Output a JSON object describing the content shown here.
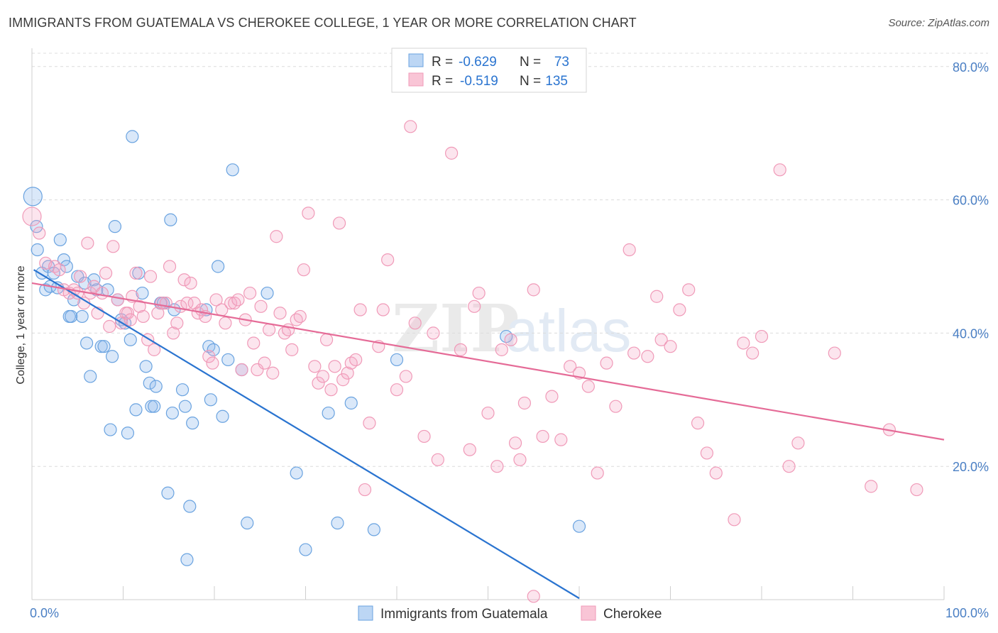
{
  "header": {
    "title": "IMMIGRANTS FROM GUATEMALA VS CHEROKEE COLLEGE, 1 YEAR OR MORE CORRELATION CHART",
    "source": "Source: ZipAtlas.com"
  },
  "legend_top": {
    "rows": [
      {
        "r_label": "R =",
        "r_value": "-0.629",
        "n_label": "N =",
        "n_value": "73"
      },
      {
        "r_label": "R =",
        "r_value": "-0.519",
        "n_label": "N =",
        "n_value": "135"
      }
    ]
  },
  "watermark": {
    "zip": "ZIP",
    "atlas": "atlas"
  },
  "chart_data": {
    "type": "scatter",
    "title": "IMMIGRANTS FROM GUATEMALA VS CHEROKEE COLLEGE, 1 YEAR OR MORE CORRELATION CHART",
    "xlabel": "",
    "ylabel": "College, 1 year or more",
    "xlim": [
      0,
      100
    ],
    "ylim": [
      0,
      82
    ],
    "x_tick_labels": [
      "0.0%",
      "100.0%"
    ],
    "y_ticks": [
      20,
      40,
      60,
      80
    ],
    "y_tick_labels": [
      "20.0%",
      "40.0%",
      "60.0%",
      "80.0%"
    ],
    "grid": true,
    "legend_position": "bottom-center",
    "colors": {
      "blue": "#6aa3e0",
      "blue_line": "#2a74d0",
      "pink": "#f09ab8",
      "pink_line": "#e56b97",
      "tick_text": "#4a7fc4"
    },
    "series": [
      {
        "name": "Immigrants from Guatemala",
        "R": -0.629,
        "N": 73,
        "trend": [
          [
            0.2,
            49.5
          ],
          [
            60,
            0.2
          ]
        ],
        "points": [
          [
            0.1,
            60.5
          ],
          [
            0.5,
            56
          ],
          [
            0.6,
            52.5
          ],
          [
            1.1,
            49
          ],
          [
            1.5,
            46.5
          ],
          [
            1.8,
            50
          ],
          [
            2.0,
            47
          ],
          [
            2.4,
            49
          ],
          [
            2.8,
            46.8
          ],
          [
            3.1,
            54
          ],
          [
            3.5,
            51
          ],
          [
            3.8,
            50
          ],
          [
            4.1,
            42.5
          ],
          [
            4.3,
            42.5
          ],
          [
            4.6,
            45
          ],
          [
            5.0,
            48.5
          ],
          [
            5.5,
            42.5
          ],
          [
            5.8,
            47.5
          ],
          [
            6.0,
            38.5
          ],
          [
            6.4,
            33.5
          ],
          [
            6.8,
            48
          ],
          [
            7.1,
            46.5
          ],
          [
            7.6,
            38
          ],
          [
            7.9,
            38
          ],
          [
            8.3,
            46.5
          ],
          [
            8.6,
            25.5
          ],
          [
            8.8,
            36.5
          ],
          [
            9.1,
            56
          ],
          [
            9.4,
            45
          ],
          [
            9.8,
            42
          ],
          [
            10.2,
            41.5
          ],
          [
            10.5,
            25
          ],
          [
            10.8,
            39
          ],
          [
            11.0,
            69.5
          ],
          [
            11.4,
            28.5
          ],
          [
            11.7,
            49
          ],
          [
            12.1,
            46
          ],
          [
            12.5,
            35
          ],
          [
            12.9,
            32.5
          ],
          [
            13.1,
            29
          ],
          [
            13.4,
            29
          ],
          [
            13.6,
            32
          ],
          [
            14.1,
            44.5
          ],
          [
            14.4,
            44.5
          ],
          [
            14.9,
            16
          ],
          [
            15.2,
            57
          ],
          [
            15.4,
            28
          ],
          [
            15.6,
            43.5
          ],
          [
            16.5,
            31.5
          ],
          [
            16.8,
            29
          ],
          [
            17.0,
            6
          ],
          [
            17.3,
            14
          ],
          [
            17.6,
            26.5
          ],
          [
            19.1,
            43.5
          ],
          [
            19.4,
            38
          ],
          [
            19.6,
            30
          ],
          [
            19.9,
            37.5
          ],
          [
            20.4,
            50
          ],
          [
            20.9,
            27.5
          ],
          [
            21.5,
            36
          ],
          [
            22.0,
            64.5
          ],
          [
            23.0,
            34.5
          ],
          [
            23.6,
            11.5
          ],
          [
            25.8,
            46
          ],
          [
            29.0,
            19
          ],
          [
            30.0,
            7.5
          ],
          [
            32.5,
            28
          ],
          [
            33.5,
            11.5
          ],
          [
            35.0,
            29.5
          ],
          [
            37.5,
            10.5
          ],
          [
            40.0,
            36
          ],
          [
            52.0,
            39.5
          ],
          [
            60.0,
            11
          ]
        ]
      },
      {
        "name": "Cherokee",
        "R": -0.519,
        "N": 135,
        "trend": [
          [
            0,
            47.5
          ],
          [
            100,
            24
          ]
        ],
        "points": [
          [
            0.0,
            57.5
          ],
          [
            0.8,
            55
          ],
          [
            1.5,
            50.5
          ],
          [
            2.5,
            50
          ],
          [
            3.0,
            49.5
          ],
          [
            3.5,
            46.5
          ],
          [
            4.1,
            46
          ],
          [
            4.6,
            46.5
          ],
          [
            5.0,
            46
          ],
          [
            5.3,
            48.5
          ],
          [
            5.7,
            44.5
          ],
          [
            6.1,
            53.5
          ],
          [
            6.4,
            46
          ],
          [
            6.8,
            47
          ],
          [
            7.2,
            43
          ],
          [
            7.7,
            46
          ],
          [
            8.1,
            49
          ],
          [
            8.5,
            41
          ],
          [
            8.9,
            53
          ],
          [
            9.4,
            45
          ],
          [
            9.8,
            41.5
          ],
          [
            10.3,
            43
          ],
          [
            10.5,
            43
          ],
          [
            10.8,
            42
          ],
          [
            11.0,
            45.5
          ],
          [
            11.4,
            49
          ],
          [
            11.8,
            44
          ],
          [
            12.2,
            42.5
          ],
          [
            12.7,
            39
          ],
          [
            13.0,
            48.5
          ],
          [
            13.4,
            37.5
          ],
          [
            13.8,
            43
          ],
          [
            14.2,
            44.5
          ],
          [
            14.7,
            44.5
          ],
          [
            15.1,
            50
          ],
          [
            15.5,
            40
          ],
          [
            15.9,
            41.5
          ],
          [
            16.3,
            44
          ],
          [
            16.7,
            48
          ],
          [
            17.0,
            44.5
          ],
          [
            17.4,
            47.5
          ],
          [
            17.8,
            44.5
          ],
          [
            18.2,
            43
          ],
          [
            18.6,
            43.5
          ],
          [
            19.0,
            42.5
          ],
          [
            19.4,
            36.5
          ],
          [
            19.8,
            35.5
          ],
          [
            20.2,
            45
          ],
          [
            20.8,
            43.5
          ],
          [
            21.2,
            41.5
          ],
          [
            21.8,
            44.5
          ],
          [
            22.2,
            44.5
          ],
          [
            22.6,
            45
          ],
          [
            23.0,
            34.5
          ],
          [
            23.4,
            42
          ],
          [
            23.9,
            46
          ],
          [
            24.3,
            38.5
          ],
          [
            24.7,
            34.5
          ],
          [
            25.1,
            44
          ],
          [
            25.5,
            35.5
          ],
          [
            26.0,
            40.5
          ],
          [
            26.4,
            34
          ],
          [
            26.8,
            54.5
          ],
          [
            27.2,
            43
          ],
          [
            27.7,
            40
          ],
          [
            28.1,
            40.5
          ],
          [
            28.5,
            37.5
          ],
          [
            29.0,
            42
          ],
          [
            29.4,
            42.5
          ],
          [
            29.8,
            49.5
          ],
          [
            30.3,
            58
          ],
          [
            31.0,
            35
          ],
          [
            31.4,
            32.5
          ],
          [
            31.9,
            33.5
          ],
          [
            32.3,
            39
          ],
          [
            32.8,
            31.5
          ],
          [
            33.2,
            35
          ],
          [
            33.7,
            56.5
          ],
          [
            34.1,
            33
          ],
          [
            34.6,
            34
          ],
          [
            35.0,
            35.5
          ],
          [
            35.5,
            36
          ],
          [
            36.0,
            43.5
          ],
          [
            36.5,
            16.5
          ],
          [
            37.0,
            26.5
          ],
          [
            38.0,
            38
          ],
          [
            38.5,
            43.5
          ],
          [
            39.0,
            51
          ],
          [
            40.0,
            31.5
          ],
          [
            41.0,
            33.5
          ],
          [
            42.0,
            41.5
          ],
          [
            43.0,
            24.5
          ],
          [
            44.0,
            40
          ],
          [
            44.5,
            21
          ],
          [
            46.0,
            67
          ],
          [
            47.0,
            37.5
          ],
          [
            48.0,
            22.5
          ],
          [
            48.5,
            44
          ],
          [
            49.0,
            46
          ],
          [
            50.0,
            28
          ],
          [
            51.0,
            20
          ],
          [
            51.5,
            37.5
          ],
          [
            52.5,
            39
          ],
          [
            53.0,
            23.5
          ],
          [
            53.5,
            21
          ],
          [
            54.0,
            29.5
          ],
          [
            55.0,
            46.5
          ],
          [
            56.0,
            24.5
          ],
          [
            57.0,
            30.5
          ],
          [
            58.0,
            24
          ],
          [
            59.0,
            35
          ],
          [
            60.0,
            34
          ],
          [
            61.0,
            32
          ],
          [
            62.0,
            19
          ],
          [
            63.0,
            35.5
          ],
          [
            64.0,
            29
          ],
          [
            65.5,
            52.5
          ],
          [
            66.0,
            37
          ],
          [
            67.5,
            36.5
          ],
          [
            68.5,
            45.5
          ],
          [
            69.0,
            39
          ],
          [
            70.0,
            38
          ],
          [
            71.0,
            43.5
          ],
          [
            72.0,
            46.5
          ],
          [
            73.0,
            26.5
          ],
          [
            74.0,
            22
          ],
          [
            75.0,
            19
          ],
          [
            77.0,
            12
          ],
          [
            78.0,
            38.5
          ],
          [
            79.0,
            37
          ],
          [
            80.0,
            39.5
          ],
          [
            82.0,
            64.5
          ],
          [
            83.0,
            20
          ],
          [
            84.0,
            23.5
          ],
          [
            88.0,
            37
          ],
          [
            92.0,
            17
          ],
          [
            94.0,
            25.5
          ],
          [
            97.0,
            16.5
          ],
          [
            55.0,
            0.5
          ],
          [
            41.5,
            71
          ]
        ]
      }
    ]
  },
  "legend_bottom": {
    "items": [
      {
        "label": "Immigrants from Guatemala"
      },
      {
        "label": "Cherokee"
      }
    ]
  }
}
